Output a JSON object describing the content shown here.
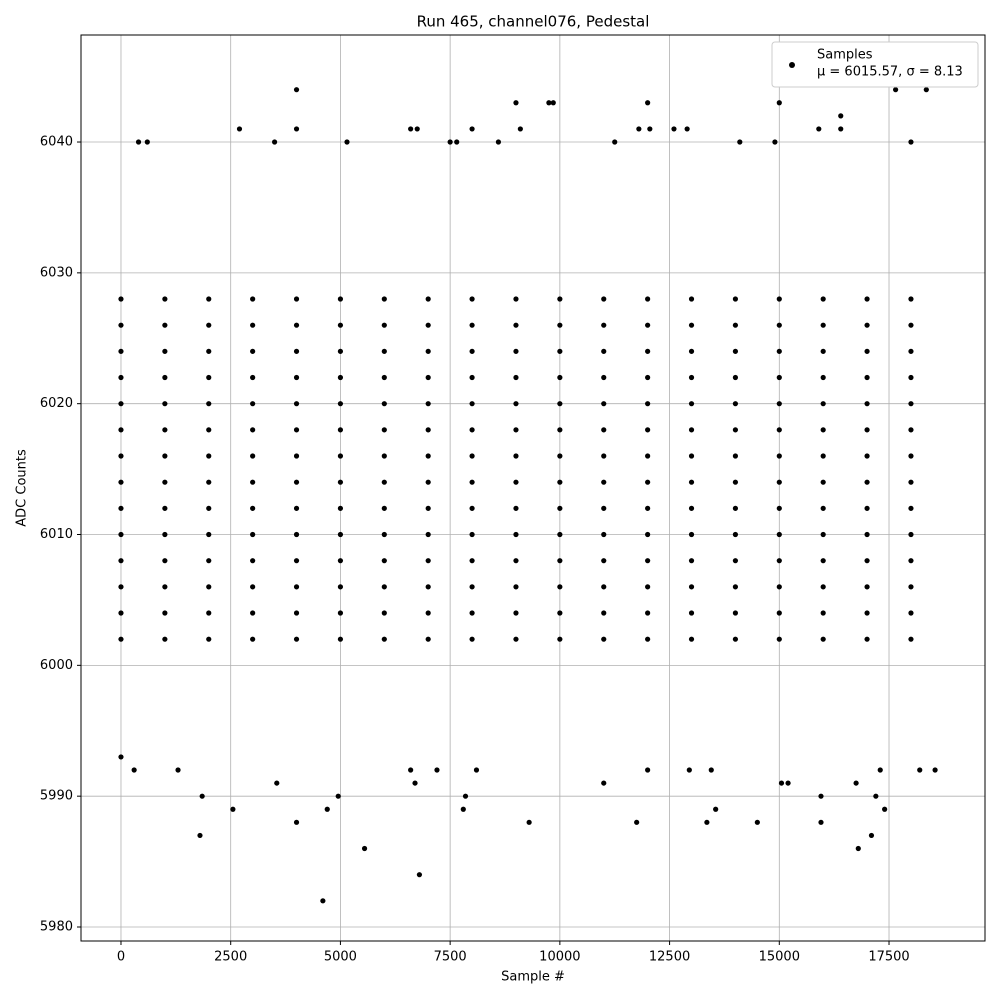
{
  "chart_data": {
    "type": "scatter",
    "title": "Run 465, channel076, Pedestal",
    "x_label": "Sample #",
    "y_label": "ADC Counts",
    "xlim": [
      -911,
      19687
    ],
    "ylim": [
      5978.93,
      6048.18
    ],
    "xticks": [
      0,
      2500,
      5000,
      7500,
      10000,
      12500,
      15000,
      17500
    ],
    "yticks": [
      5980,
      5990,
      6000,
      6010,
      6020,
      6030,
      6040
    ],
    "grid": true,
    "legend": "upper right",
    "series": [
      {
        "name": "Samples",
        "stats": "μ = 6015.57, σ = 8.13",
        "color": "#000000",
        "x": [
          4600,
          6800,
          5550,
          16800,
          1800,
          17100,
          4000,
          9300,
          11750,
          13350,
          14500,
          15950,
          2550,
          4700,
          7800,
          13550,
          17400,
          1850,
          4950,
          7850,
          15950,
          17200,
          6700,
          3550,
          11000,
          15050,
          15200,
          16750,
          4000,
          17650,
          18350,
          9000,
          9750,
          9850,
          12000,
          15000,
          16400,
          2700,
          4000,
          6600,
          6750,
          8000,
          9100,
          11800,
          12050,
          12600,
          12900,
          15900,
          16400,
          400,
          600,
          3500,
          5150,
          7500,
          7650,
          8600,
          11250,
          14100,
          14900,
          18000,
          0,
          300,
          1300,
          6600,
          7200,
          8100,
          12000,
          12950,
          13450,
          17300,
          18200,
          18550,
          0,
          1000,
          2000,
          3000,
          4000,
          5000,
          6000,
          7000,
          8000,
          9000,
          10000,
          11000,
          12000,
          13000,
          14000,
          15000,
          16000,
          17000,
          18000,
          0,
          1000,
          2000,
          3000,
          4000,
          5000,
          6000,
          7000,
          8000,
          9000,
          10000,
          11000,
          12000,
          13000,
          14000,
          15000,
          16000,
          17000,
          18000,
          0,
          1000,
          2000,
          3000,
          4000,
          5000,
          6000,
          7000,
          8000,
          9000,
          10000,
          11000,
          12000,
          13000,
          14000,
          15000,
          16000,
          17000,
          18000,
          0,
          1000,
          2000,
          3000,
          4000,
          5000,
          6000,
          7000,
          8000,
          9000,
          10000,
          11000,
          12000,
          13000,
          14000,
          15000,
          16000,
          17000,
          18000,
          0,
          1000,
          2000,
          3000,
          4000,
          5000,
          6000,
          7000,
          8000,
          9000,
          10000,
          11000,
          12000,
          13000,
          14000,
          15000,
          16000,
          17000,
          18000,
          0,
          1000,
          2000,
          3000,
          4000,
          5000,
          6000,
          7000,
          8000,
          9000,
          10000,
          11000,
          12000,
          13000,
          14000,
          15000,
          16000,
          17000,
          18000,
          0,
          1000,
          2000,
          3000,
          4000,
          5000,
          6000,
          7000,
          8000,
          9000,
          10000,
          11000,
          12000,
          13000,
          14000,
          15000,
          16000,
          17000,
          18000,
          0,
          1000,
          2000,
          3000,
          4000,
          5000,
          6000,
          7000,
          8000,
          9000,
          10000,
          11000,
          12000,
          13000,
          14000,
          15000,
          16000,
          17000,
          18000,
          0,
          1000,
          2000,
          3000,
          4000,
          5000,
          6000,
          7000,
          8000,
          9000,
          10000,
          11000,
          12000,
          13000,
          14000,
          15000,
          16000,
          17000,
          18000,
          0,
          1000,
          2000,
          3000,
          4000,
          5000,
          6000,
          7000,
          8000,
          9000,
          10000,
          11000,
          12000,
          13000,
          14000,
          15000,
          16000,
          17000,
          18000,
          0,
          1000,
          2000,
          3000,
          4000,
          5000,
          6000,
          7000,
          8000,
          9000,
          10000,
          11000,
          12000,
          13000,
          14000,
          15000,
          16000,
          17000,
          18000,
          0,
          1000,
          2000,
          3000,
          4000,
          5000,
          6000,
          7000,
          8000,
          9000,
          10000,
          11000,
          12000,
          13000,
          14000,
          15000,
          16000,
          17000,
          18000,
          0,
          1000,
          2000,
          3000,
          4000,
          5000,
          6000,
          7000,
          8000,
          9000,
          10000,
          11000,
          12000,
          13000,
          14000,
          15000,
          16000,
          17000,
          18000,
          0,
          1000,
          2000,
          3000,
          4000,
          5000,
          6000,
          7000,
          8000,
          9000,
          10000,
          11000,
          12000,
          13000,
          14000,
          15000,
          16000,
          17000,
          18000
        ],
        "y": [
          5982,
          5984,
          5986,
          5986,
          5987,
          5987,
          5988,
          5988,
          5988,
          5988,
          5988,
          5988,
          5989,
          5989,
          5989,
          5989,
          5989,
          5990,
          5990,
          5990,
          5990,
          5990,
          5991,
          5991,
          5991,
          5991,
          5991,
          5991,
          6044,
          6044,
          6044,
          6043,
          6043,
          6043,
          6043,
          6043,
          6042,
          6041,
          6041,
          6041,
          6041,
          6041,
          6041,
          6041,
          6041,
          6041,
          6041,
          6041,
          6041,
          6040,
          6040,
          6040,
          6040,
          6040,
          6040,
          6040,
          6040,
          6040,
          6040,
          6040,
          5993,
          5992,
          5992,
          5992,
          5992,
          5992,
          5992,
          5992,
          5992,
          5992,
          5992,
          5992,
          6002,
          6002,
          6002,
          6002,
          6002,
          6002,
          6002,
          6002,
          6002,
          6002,
          6002,
          6002,
          6002,
          6002,
          6002,
          6002,
          6002,
          6002,
          6002,
          6004,
          6004,
          6004,
          6004,
          6004,
          6004,
          6004,
          6004,
          6004,
          6004,
          6004,
          6004,
          6004,
          6004,
          6004,
          6004,
          6004,
          6004,
          6004,
          6006,
          6006,
          6006,
          6006,
          6006,
          6006,
          6006,
          6006,
          6006,
          6006,
          6006,
          6006,
          6006,
          6006,
          6006,
          6006,
          6006,
          6006,
          6006,
          6008,
          6008,
          6008,
          6008,
          6008,
          6008,
          6008,
          6008,
          6008,
          6008,
          6008,
          6008,
          6008,
          6008,
          6008,
          6008,
          6008,
          6008,
          6008,
          6010,
          6010,
          6010,
          6010,
          6010,
          6010,
          6010,
          6010,
          6010,
          6010,
          6010,
          6010,
          6010,
          6010,
          6010,
          6010,
          6010,
          6010,
          6010,
          6012,
          6012,
          6012,
          6012,
          6012,
          6012,
          6012,
          6012,
          6012,
          6012,
          6012,
          6012,
          6012,
          6012,
          6012,
          6012,
          6012,
          6012,
          6012,
          6014,
          6014,
          6014,
          6014,
          6014,
          6014,
          6014,
          6014,
          6014,
          6014,
          6014,
          6014,
          6014,
          6014,
          6014,
          6014,
          6014,
          6014,
          6014,
          6016,
          6016,
          6016,
          6016,
          6016,
          6016,
          6016,
          6016,
          6016,
          6016,
          6016,
          6016,
          6016,
          6016,
          6016,
          6016,
          6016,
          6016,
          6016,
          6018,
          6018,
          6018,
          6018,
          6018,
          6018,
          6018,
          6018,
          6018,
          6018,
          6018,
          6018,
          6018,
          6018,
          6018,
          6018,
          6018,
          6018,
          6018,
          6020,
          6020,
          6020,
          6020,
          6020,
          6020,
          6020,
          6020,
          6020,
          6020,
          6020,
          6020,
          6020,
          6020,
          6020,
          6020,
          6020,
          6020,
          6020,
          6022,
          6022,
          6022,
          6022,
          6022,
          6022,
          6022,
          6022,
          6022,
          6022,
          6022,
          6022,
          6022,
          6022,
          6022,
          6022,
          6022,
          6022,
          6022,
          6024,
          6024,
          6024,
          6024,
          6024,
          6024,
          6024,
          6024,
          6024,
          6024,
          6024,
          6024,
          6024,
          6024,
          6024,
          6024,
          6024,
          6024,
          6024,
          6026,
          6026,
          6026,
          6026,
          6026,
          6026,
          6026,
          6026,
          6026,
          6026,
          6026,
          6026,
          6026,
          6026,
          6026,
          6026,
          6026,
          6026,
          6026,
          6028,
          6028,
          6028,
          6028,
          6028,
          6028,
          6028,
          6028,
          6028,
          6028,
          6028,
          6028,
          6028,
          6028,
          6028,
          6028,
          6028,
          6028,
          6028
        ]
      }
    ]
  }
}
